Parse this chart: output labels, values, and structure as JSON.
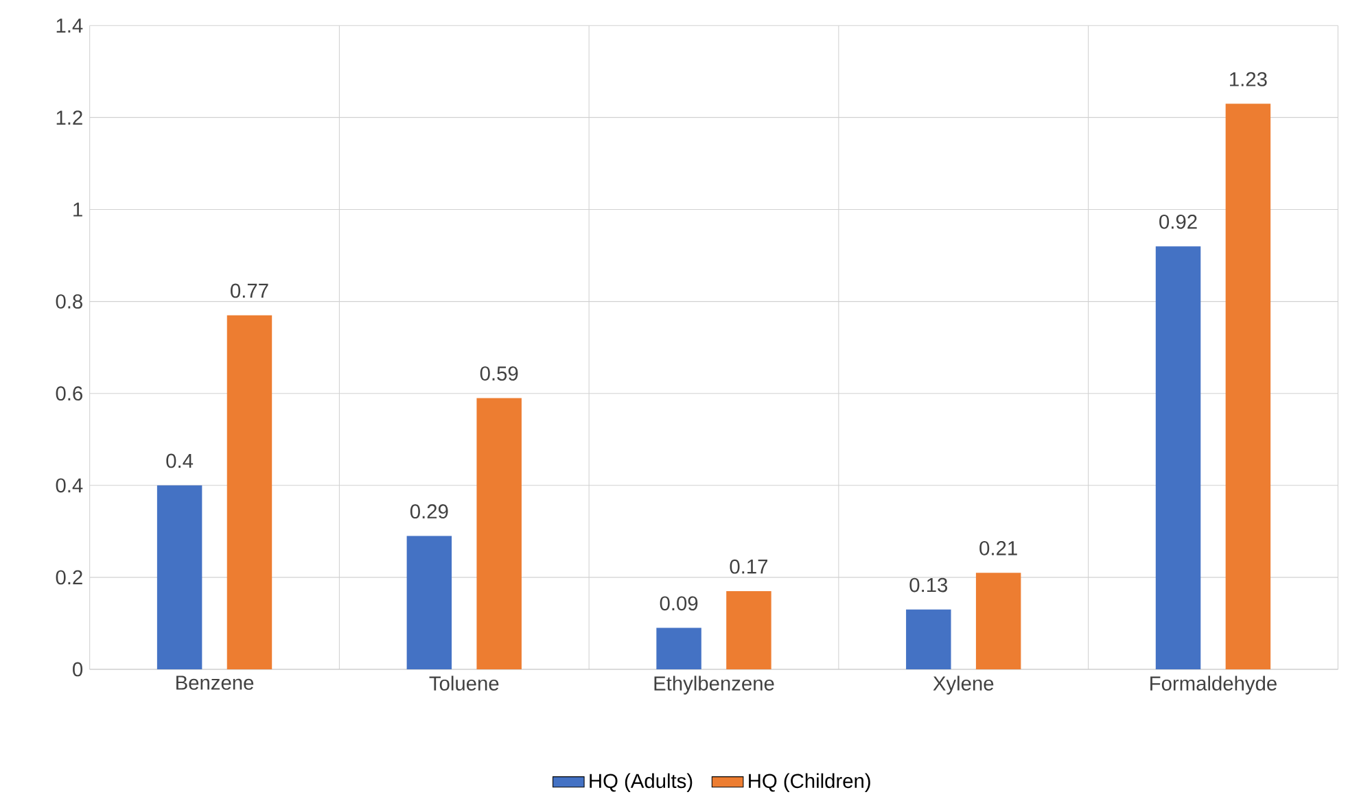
{
  "chart_data": {
    "type": "bar",
    "categories": [
      "Benzene",
      "Toluene",
      "Ethylbenzene",
      "Xylene",
      "Formaldehyde"
    ],
    "series": [
      {
        "name": "HQ (Adults)",
        "color": "#4472c4",
        "values": [
          0.4,
          0.29,
          0.09,
          0.13,
          0.92
        ]
      },
      {
        "name": "HQ (Children)",
        "color": "#ed7d31",
        "values": [
          0.77,
          0.59,
          0.17,
          0.21,
          1.23
        ]
      }
    ],
    "ylim": [
      0,
      1.4
    ],
    "yticks": [
      0,
      0.2,
      0.4,
      0.6,
      0.8,
      1,
      1.2,
      1.4
    ],
    "grid": true,
    "legend": "bottom",
    "data_labels": true
  }
}
